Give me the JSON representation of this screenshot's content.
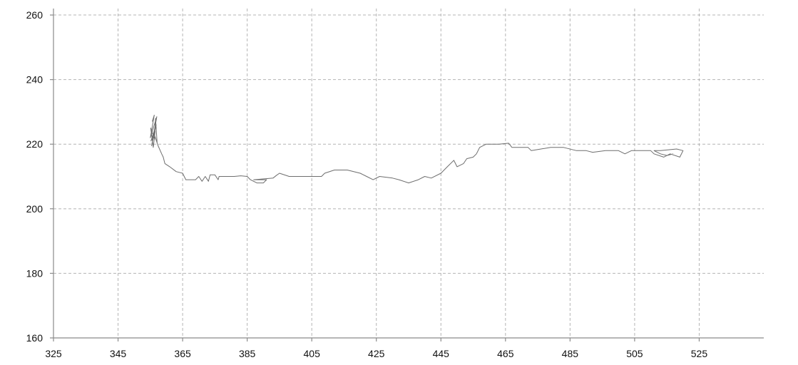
{
  "chart_data": {
    "type": "line",
    "title": "",
    "xlabel": "",
    "ylabel": "",
    "xlim": [
      325,
      545
    ],
    "ylim": [
      160,
      262
    ],
    "x_ticks": [
      325,
      345,
      365,
      385,
      405,
      425,
      445,
      465,
      485,
      505,
      525
    ],
    "y_ticks": [
      160,
      180,
      200,
      220,
      240,
      260
    ],
    "grid": true,
    "line_color": "#6e6e6e",
    "series": [
      {
        "points": [
          [
            355.6,
            227
          ],
          [
            356.2,
            229
          ],
          [
            355.0,
            222
          ],
          [
            357.0,
            228.5
          ],
          [
            355.4,
            219.5
          ],
          [
            356.8,
            226
          ],
          [
            355.2,
            221
          ],
          [
            356.5,
            224
          ],
          [
            355.9,
            219
          ],
          [
            355.1,
            225
          ],
          [
            356.3,
            221.5
          ],
          [
            356.6,
            228
          ],
          [
            357.1,
            220.5
          ],
          [
            356.2,
            223
          ],
          [
            357.4,
            219.5
          ],
          [
            358.5,
            217
          ],
          [
            359.0,
            216
          ],
          [
            359.5,
            214
          ],
          [
            361,
            213
          ],
          [
            363,
            211.5
          ],
          [
            365,
            211
          ],
          [
            366,
            209
          ],
          [
            369,
            209
          ],
          [
            370,
            210
          ],
          [
            371,
            208.5
          ],
          [
            372,
            210
          ],
          [
            373,
            208.5
          ],
          [
            373.5,
            210.5
          ],
          [
            375,
            210.5
          ],
          [
            376,
            209
          ],
          [
            376.3,
            210
          ],
          [
            380,
            210
          ],
          [
            381,
            210
          ],
          [
            383,
            210.2
          ],
          [
            385,
            210
          ],
          [
            386,
            209
          ],
          [
            388,
            208
          ],
          [
            390,
            208
          ],
          [
            391,
            209
          ],
          [
            387,
            209
          ],
          [
            393,
            209.5
          ],
          [
            394,
            210.3
          ],
          [
            395,
            211
          ],
          [
            398,
            210
          ],
          [
            401,
            210
          ],
          [
            403,
            210
          ],
          [
            405,
            210
          ],
          [
            408,
            210
          ],
          [
            409,
            211
          ],
          [
            412,
            212
          ],
          [
            416,
            212
          ],
          [
            420,
            211
          ],
          [
            422,
            210
          ],
          [
            424,
            209
          ],
          [
            426,
            210
          ],
          [
            430,
            209.5
          ],
          [
            432,
            209
          ],
          [
            435,
            208
          ],
          [
            438,
            209
          ],
          [
            440,
            210
          ],
          [
            442,
            209.5
          ],
          [
            445,
            211
          ],
          [
            447,
            213
          ],
          [
            449,
            215
          ],
          [
            450,
            213
          ],
          [
            452,
            214
          ],
          [
            453,
            215.5
          ],
          [
            455,
            216
          ],
          [
            456,
            217
          ],
          [
            457,
            219
          ],
          [
            459,
            220
          ],
          [
            463,
            220
          ],
          [
            466,
            220.3
          ],
          [
            467,
            219
          ],
          [
            472,
            219
          ],
          [
            473,
            218
          ],
          [
            476,
            218.5
          ],
          [
            479,
            219
          ],
          [
            483,
            219
          ],
          [
            487,
            218
          ],
          [
            490,
            218
          ],
          [
            492,
            217.5
          ],
          [
            496,
            218
          ],
          [
            500,
            218
          ],
          [
            502,
            217
          ],
          [
            504,
            218
          ],
          [
            510,
            218
          ],
          [
            511,
            217
          ],
          [
            514,
            216
          ],
          [
            516,
            217
          ],
          [
            519,
            216
          ],
          [
            520,
            218
          ],
          [
            518,
            218.5
          ],
          [
            513,
            218
          ],
          [
            511,
            218
          ],
          [
            513,
            217
          ],
          [
            515,
            216.5
          ],
          [
            517,
            217
          ]
        ]
      }
    ]
  }
}
